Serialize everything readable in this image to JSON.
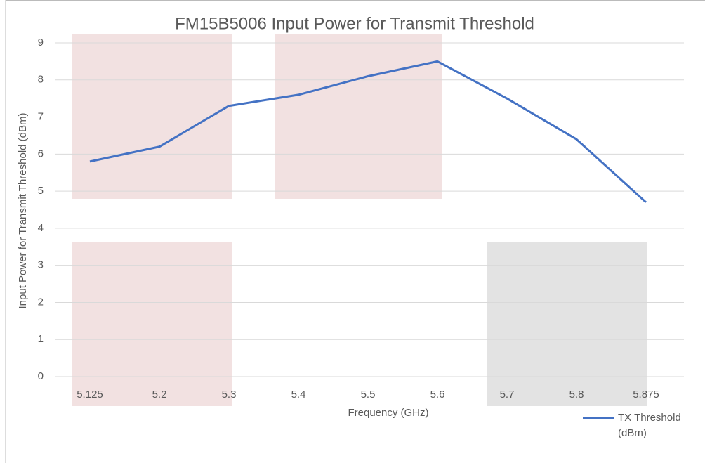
{
  "chart_data": {
    "type": "line",
    "title": "FM15B5006 Input Power for Transmit Threshold",
    "x_label": "Frequency (GHz)",
    "y_label": "Input Power for Transmit Threshold (dBm)",
    "categories": [
      "5.125",
      "5.2",
      "5.3",
      "5.4",
      "5.5",
      "5.6",
      "5.7",
      "5.8",
      "5.875"
    ],
    "series": [
      {
        "name": "TX Threshold (dBm)",
        "color": "#4472c4",
        "values": [
          5.8,
          6.2,
          7.3,
          7.6,
          8.1,
          8.5,
          7.5,
          6.4,
          4.7
        ]
      }
    ],
    "ylim": [
      0,
      9
    ],
    "yticks": [
      0,
      1,
      2,
      3,
      4,
      5,
      6,
      7,
      8,
      9
    ],
    "grid": true,
    "legend": "bottom-right"
  }
}
